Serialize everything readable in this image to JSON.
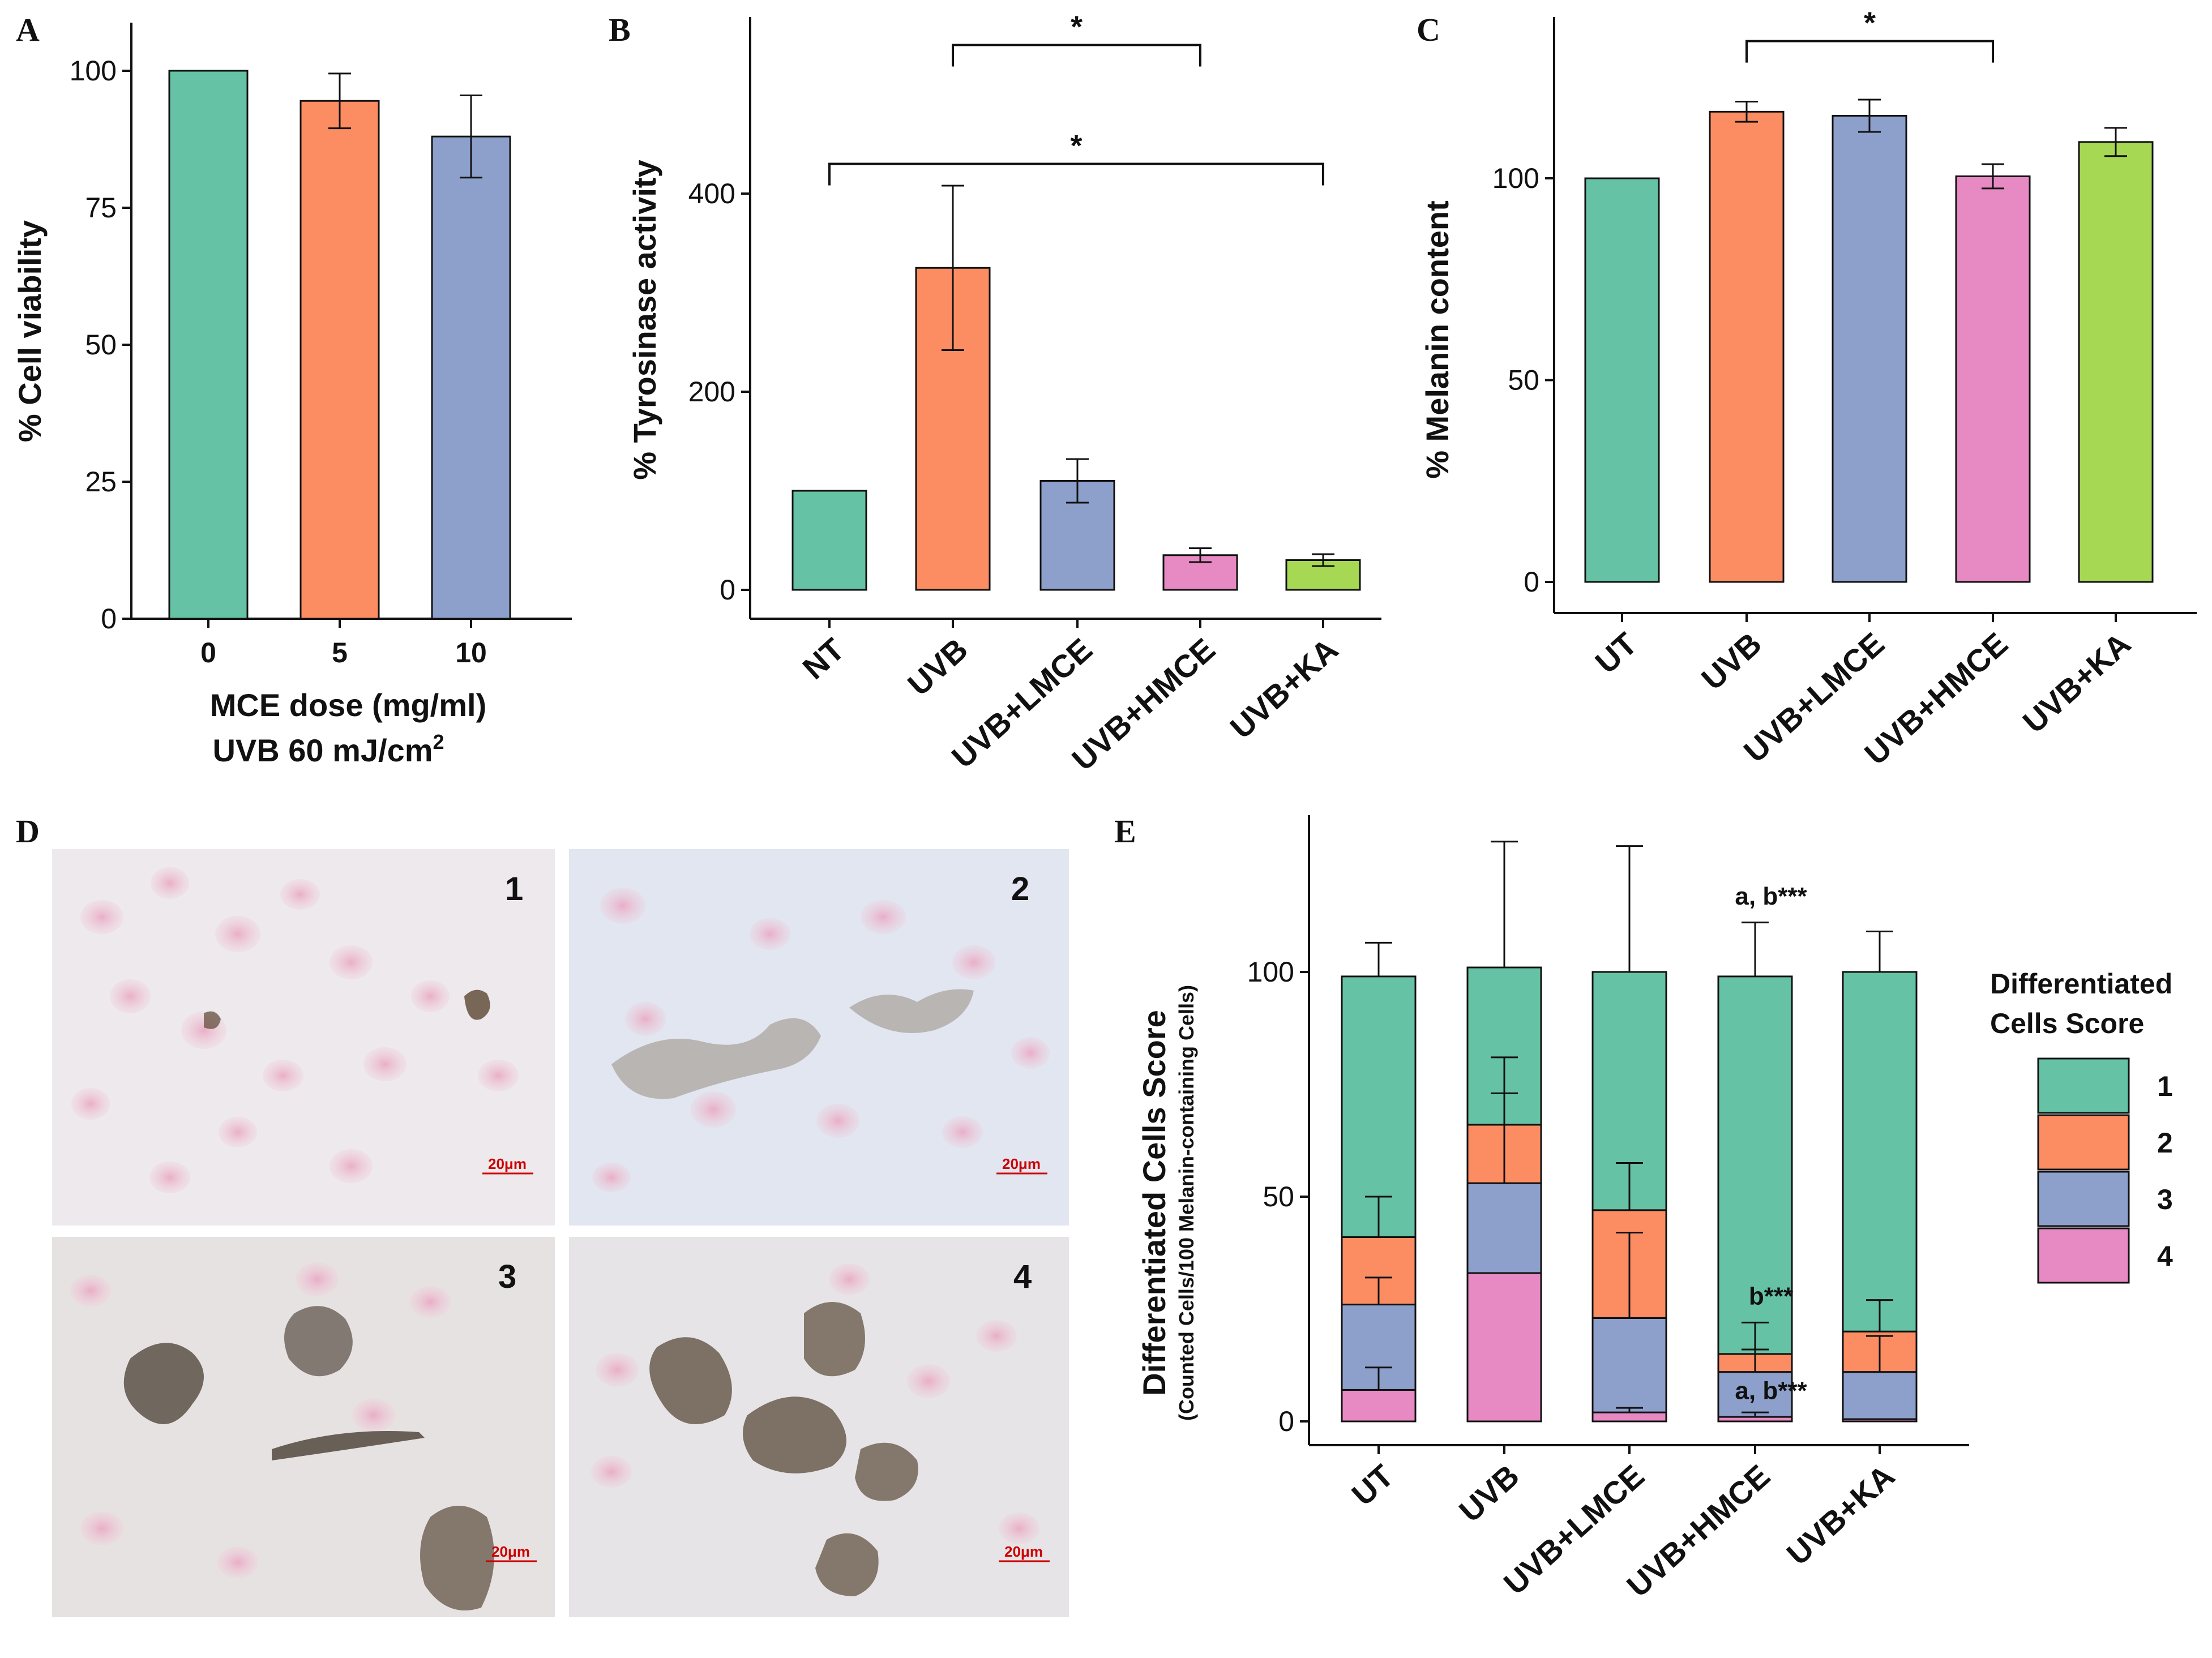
{
  "panels": {
    "A": {
      "label": "A"
    },
    "B": {
      "label": "B"
    },
    "C": {
      "label": "C"
    },
    "D": {
      "label": "D"
    },
    "E": {
      "label": "E"
    }
  },
  "chart_data": [
    {
      "panel": "A",
      "type": "bar",
      "categories": [
        "0",
        "5",
        "10"
      ],
      "values": [
        100,
        94.5,
        88
      ],
      "errors": [
        0,
        5,
        7.5
      ],
      "colors": [
        "#66c2a5",
        "#fc8d62",
        "#8da0cb"
      ],
      "ylabel": "% Cell viability",
      "xlabel": "MCE dose (mg/ml)",
      "xlabel2": "UVB 60 mJ/cm",
      "xlabel2_sup": "2",
      "ylim": [
        0,
        100
      ],
      "yticks": [
        0,
        25,
        50,
        75,
        100
      ]
    },
    {
      "panel": "B",
      "type": "bar",
      "categories": [
        "NT",
        "UVB",
        "UVB+LMCE",
        "UVB+HMCE",
        "UVB+KA"
      ],
      "values": [
        100,
        325,
        110,
        35,
        30
      ],
      "errors": [
        0,
        83,
        22,
        7,
        6
      ],
      "colors": [
        "#66c2a5",
        "#fc8d62",
        "#8da0cb",
        "#e78ac3",
        "#a6d854"
      ],
      "ylabel": "% Tyrosinase activity",
      "ylim": [
        0,
        580
      ],
      "yticks": [
        0,
        200,
        400
      ],
      "significance": [
        {
          "from": 1,
          "to": 3,
          "y": 550,
          "label": "*"
        },
        {
          "from": 0,
          "to": 4,
          "y": 430,
          "label": "*"
        }
      ]
    },
    {
      "panel": "C",
      "type": "bar",
      "categories": [
        "UT",
        "UVB",
        "UVB+LMCE",
        "UVB+HMCE",
        "UVB+KA"
      ],
      "values": [
        100,
        116.5,
        115.5,
        100.5,
        109
      ],
      "errors": [
        0,
        2.5,
        4,
        3,
        3.5
      ],
      "colors": [
        "#66c2a5",
        "#fc8d62",
        "#8da0cb",
        "#e78ac3",
        "#a6d854"
      ],
      "ylabel": "% Melanin content",
      "ylim": [
        0,
        143
      ],
      "yticks": [
        0,
        50,
        100
      ],
      "significance": [
        {
          "from": 1,
          "to": 3,
          "y": 134,
          "label": "*"
        }
      ]
    },
    {
      "panel": "E",
      "type": "bar",
      "stacked": true,
      "categories": [
        "UT",
        "UVB",
        "UVB+LMCE",
        "UVB+HMCE",
        "UVB+KA"
      ],
      "series": [
        {
          "name": "4",
          "color": "#e78ac3",
          "values": [
            7,
            33,
            2,
            1,
            0.5
          ],
          "errors": [
            5,
            0,
            1,
            1,
            0
          ]
        },
        {
          "name": "3",
          "color": "#8da0cb",
          "values": [
            19,
            20,
            21,
            10,
            10.5
          ],
          "errors": [
            6,
            20,
            19,
            5,
            8
          ]
        },
        {
          "name": "2",
          "color": "#fc8d62",
          "values": [
            15,
            13,
            24,
            4,
            9
          ],
          "errors": [
            9,
            15,
            10.5,
            7,
            7
          ]
        },
        {
          "name": "1",
          "color": "#66c2a5",
          "values": [
            58,
            35,
            53,
            84,
            80
          ],
          "errors": [
            7.5,
            28,
            28,
            12,
            9
          ]
        }
      ],
      "ylabel": "Differentiated Cells Score",
      "ylabel2": "(Counted Cells/100 Melanin-containing Cells)",
      "ylim": [
        0,
        133
      ],
      "yticks": [
        0,
        50,
        100
      ],
      "legend_title_line1": "Differentiated",
      "legend_title_line2": "Cells Score",
      "legend_order": [
        "1",
        "2",
        "3",
        "4"
      ],
      "annotations": [
        {
          "text": "a, b***",
          "category": 3,
          "y": 115
        },
        {
          "text": "b***",
          "category": 3,
          "y": 26
        },
        {
          "text": "a, b***",
          "category": 3,
          "y": 5
        }
      ]
    }
  ],
  "micrographs": [
    {
      "number": "1",
      "scale": "20μm"
    },
    {
      "number": "2",
      "scale": "20μm"
    },
    {
      "number": "3",
      "scale": "20μm"
    },
    {
      "number": "4",
      "scale": "20μm"
    }
  ]
}
